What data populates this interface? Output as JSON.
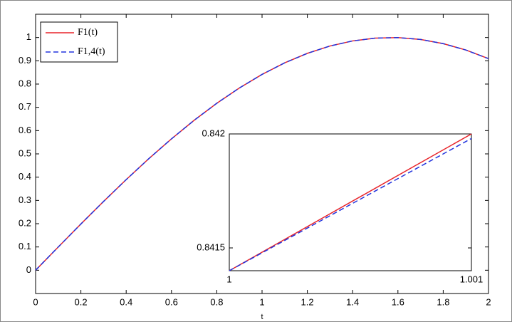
{
  "chart_data": [
    {
      "type": "line",
      "xlabel": "t",
      "x": [
        0,
        0.1,
        0.2,
        0.3,
        0.4,
        0.5,
        0.6,
        0.7,
        0.8,
        0.9,
        1,
        1.1,
        1.2,
        1.3,
        1.4,
        1.5,
        1.6,
        1.7,
        1.8,
        1.9,
        2
      ],
      "series": [
        {
          "name": "F1(t)",
          "color": "#e8242a",
          "style": "solid",
          "values": [
            0,
            0.0998,
            0.1987,
            0.2955,
            0.3894,
            0.4794,
            0.5646,
            0.6442,
            0.7174,
            0.7833,
            0.8415,
            0.8912,
            0.932,
            0.9636,
            0.9854,
            0.9975,
            0.9996,
            0.9917,
            0.9738,
            0.9463,
            0.9093
          ]
        },
        {
          "name": "F1,4(t)",
          "color": "#2233dd",
          "style": "dashed",
          "values": [
            0,
            0.0998,
            0.1987,
            0.2955,
            0.3894,
            0.4794,
            0.5646,
            0.6442,
            0.7174,
            0.7833,
            0.8415,
            0.8912,
            0.932,
            0.9636,
            0.9854,
            0.9975,
            0.9996,
            0.9917,
            0.9738,
            0.9463,
            0.9093
          ]
        }
      ],
      "xlim": [
        0,
        2
      ],
      "xticks": [
        0,
        0.2,
        0.4,
        0.6,
        0.8,
        1,
        1.2,
        1.4,
        1.6,
        1.8,
        2
      ],
      "ylim": [
        -0.1,
        1.1
      ],
      "yticks": [
        0,
        0.1,
        0.2,
        0.3,
        0.4,
        0.5,
        0.6,
        0.7,
        0.8,
        0.9,
        1
      ],
      "legend": "upper left"
    },
    {
      "type": "line",
      "x": [
        1,
        1.001
      ],
      "series": [
        {
          "color": "#e8242a",
          "style": "solid",
          "values": [
            0.8414,
            0.842
          ]
        },
        {
          "color": "#2233dd",
          "style": "dashed",
          "values": [
            0.8414,
            0.84198
          ]
        }
      ],
      "xlim": [
        1,
        1.001
      ],
      "xticks": [
        1,
        1.001
      ],
      "ylim": [
        0.8414,
        0.842
      ],
      "yticks": [
        0.8415,
        0.842
      ]
    }
  ]
}
